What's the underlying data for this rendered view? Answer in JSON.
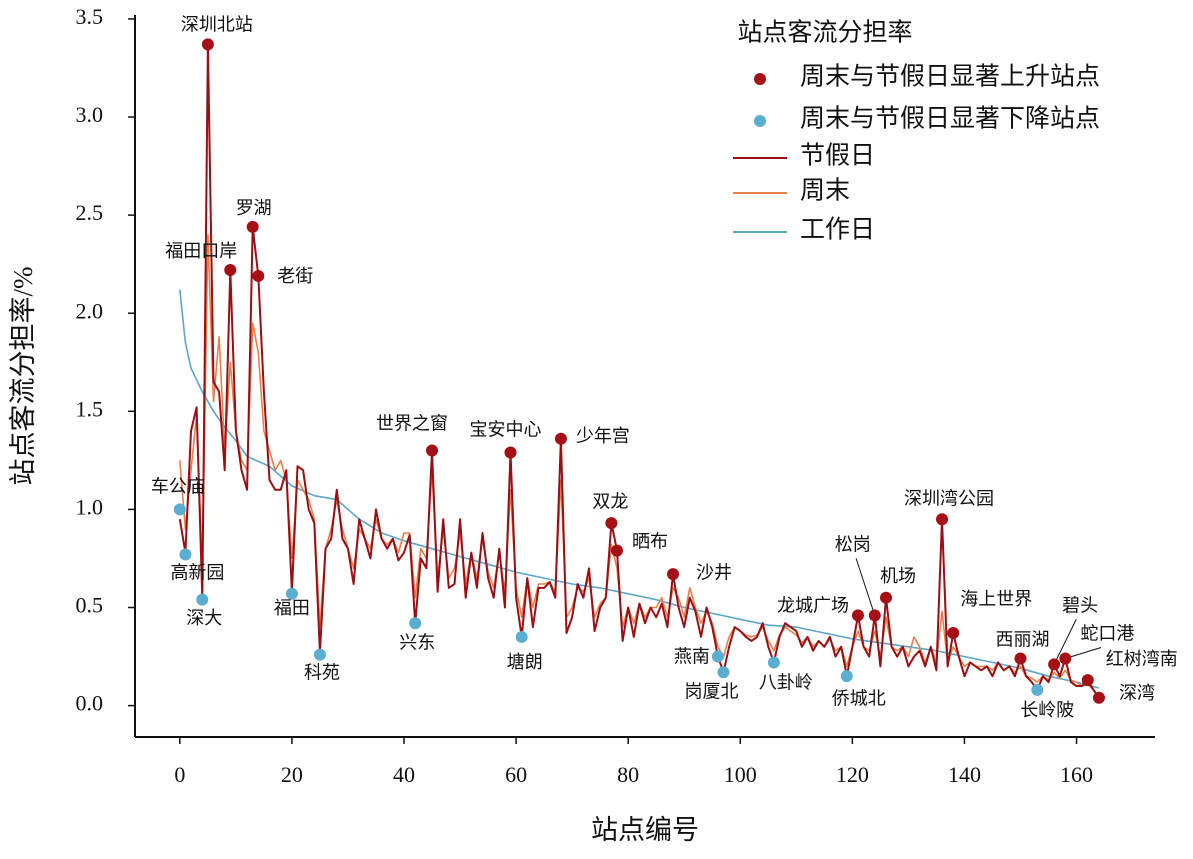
{
  "chart_data": {
    "type": "line",
    "xlabel": "站点编号",
    "ylabel": "站点客流分担率/%",
    "legend_title": "站点客流分担率",
    "legend": "upper right",
    "xlim": [
      -8,
      174
    ],
    "ylim": [
      -0.16,
      3.52
    ],
    "xticks": [
      0,
      20,
      40,
      60,
      80,
      100,
      120,
      140,
      160
    ],
    "yticks": [
      {
        "value": 0,
        "label": "0.0"
      },
      0.5,
      {
        "value": 1,
        "label": "1.0"
      },
      1.5,
      {
        "value": 2,
        "label": "2.0"
      },
      2.5,
      {
        "value": 3,
        "label": "3.0"
      },
      3.5
    ],
    "x": [
      0,
      1,
      2,
      3,
      4,
      5,
      6,
      7,
      8,
      9,
      10,
      11,
      12,
      13,
      14,
      15,
      16,
      17,
      18,
      19,
      20,
      21,
      22,
      23,
      24,
      25,
      26,
      27,
      28,
      29,
      30,
      31,
      32,
      33,
      34,
      35,
      36,
      37,
      38,
      39,
      40,
      41,
      42,
      43,
      44,
      45,
      46,
      47,
      48,
      49,
      50,
      51,
      52,
      53,
      54,
      55,
      56,
      57,
      58,
      59,
      60,
      61,
      62,
      63,
      64,
      65,
      66,
      67,
      68,
      69,
      70,
      71,
      72,
      73,
      74,
      75,
      76,
      77,
      78,
      79,
      80,
      81,
      82,
      83,
      84,
      85,
      86,
      87,
      88,
      89,
      90,
      91,
      92,
      93,
      94,
      95,
      96,
      97,
      98,
      99,
      100,
      101,
      102,
      103,
      104,
      105,
      106,
      107,
      108,
      109,
      110,
      111,
      112,
      113,
      114,
      115,
      116,
      117,
      118,
      119,
      120,
      121,
      122,
      123,
      124,
      125,
      126,
      127,
      128,
      129,
      130,
      131,
      132,
      133,
      134,
      135,
      136,
      137,
      138,
      139,
      140,
      141,
      142,
      143,
      144,
      145,
      146,
      147,
      148,
      149,
      150,
      151,
      152,
      153,
      154,
      155,
      156,
      157,
      158,
      159,
      160,
      161,
      162,
      163,
      164
    ],
    "series": [
      {
        "name": "周末与节假日显著上升站点",
        "type": "scatter",
        "color": "#a50f15",
        "labels": [
          "深圳北站",
          "福田口岸",
          "罗湖",
          "老街",
          "世界之窗",
          "宝安中心",
          "少年宫",
          "双龙",
          "晒布",
          "沙井",
          "龙城广场",
          "松岗",
          "机场",
          "深圳湾公园",
          "海上世界",
          "西丽湖",
          "碧头",
          "蛇口港",
          "红树湾南",
          "深湾"
        ],
        "x": [
          5,
          9,
          13,
          14,
          45,
          59,
          68,
          77,
          78,
          88,
          121,
          124,
          126,
          136,
          138,
          150,
          156,
          158,
          162,
          164
        ],
        "values": [
          3.37,
          2.22,
          2.44,
          2.19,
          1.3,
          1.29,
          1.36,
          0.93,
          0.79,
          0.67,
          0.46,
          0.46,
          0.55,
          0.95,
          0.37,
          0.24,
          0.21,
          0.24,
          0.13,
          0.04
        ]
      },
      {
        "name": "周末与节假日显著下降站点",
        "type": "scatter",
        "color": "#5aaed0",
        "labels": [
          "车公庙",
          "高新园",
          "深大",
          "福田",
          "科苑",
          "兴东",
          "塘朗",
          "燕南",
          "岗厦北",
          "八卦岭",
          "侨城北",
          "长岭陂"
        ],
        "x": [
          0,
          1,
          4,
          20,
          25,
          42,
          61,
          96,
          97,
          106,
          119,
          153
        ],
        "values": [
          1.0,
          0.77,
          0.54,
          0.57,
          0.26,
          0.42,
          0.35,
          0.25,
          0.17,
          0.22,
          0.15,
          0.08
        ]
      },
      {
        "name": "节假日",
        "type": "line",
        "color": "#9b0e14",
        "values": [
          0.95,
          0.78,
          1.4,
          1.52,
          0.55,
          3.37,
          1.65,
          1.6,
          1.2,
          2.22,
          1.4,
          1.2,
          1.1,
          2.44,
          2.19,
          1.6,
          1.15,
          1.1,
          1.1,
          1.2,
          0.58,
          1.22,
          1.2,
          1.0,
          0.93,
          0.27,
          0.8,
          0.85,
          1.1,
          0.85,
          0.8,
          0.62,
          0.95,
          0.85,
          0.75,
          1.0,
          0.85,
          0.8,
          0.85,
          0.74,
          0.78,
          0.87,
          0.42,
          0.75,
          0.7,
          1.3,
          0.58,
          0.95,
          0.6,
          0.62,
          0.95,
          0.55,
          0.78,
          0.6,
          0.88,
          0.65,
          0.55,
          0.8,
          0.5,
          1.29,
          0.55,
          0.35,
          0.65,
          0.4,
          0.6,
          0.6,
          0.63,
          0.55,
          1.36,
          0.37,
          0.45,
          0.62,
          0.55,
          0.7,
          0.38,
          0.5,
          0.55,
          0.93,
          0.79,
          0.33,
          0.5,
          0.35,
          0.52,
          0.42,
          0.5,
          0.45,
          0.52,
          0.4,
          0.67,
          0.5,
          0.4,
          0.55,
          0.48,
          0.35,
          0.5,
          0.4,
          0.25,
          0.17,
          0.3,
          0.4,
          0.38,
          0.35,
          0.33,
          0.35,
          0.42,
          0.3,
          0.22,
          0.35,
          0.42,
          0.4,
          0.38,
          0.3,
          0.35,
          0.28,
          0.33,
          0.3,
          0.35,
          0.25,
          0.3,
          0.15,
          0.3,
          0.46,
          0.3,
          0.25,
          0.46,
          0.2,
          0.55,
          0.3,
          0.25,
          0.3,
          0.2,
          0.25,
          0.28,
          0.2,
          0.3,
          0.18,
          0.95,
          0.2,
          0.37,
          0.25,
          0.15,
          0.22,
          0.2,
          0.18,
          0.2,
          0.15,
          0.22,
          0.18,
          0.2,
          0.15,
          0.24,
          0.15,
          0.12,
          0.08,
          0.15,
          0.12,
          0.21,
          0.15,
          0.24,
          0.12,
          0.1,
          0.1,
          0.13,
          0.08,
          0.04
        ]
      },
      {
        "name": "周末",
        "type": "line",
        "color": "#e8804a",
        "values": [
          1.25,
          0.9,
          1.2,
          1.48,
          0.7,
          2.4,
          1.55,
          1.88,
          1.3,
          1.75,
          1.4,
          1.25,
          1.2,
          1.95,
          1.8,
          1.4,
          1.3,
          1.2,
          1.25,
          1.15,
          0.75,
          1.15,
          1.1,
          1.05,
          0.95,
          0.4,
          0.8,
          0.9,
          1.05,
          0.9,
          0.8,
          0.7,
          0.9,
          0.85,
          0.8,
          0.95,
          0.85,
          0.82,
          0.85,
          0.78,
          0.88,
          0.88,
          0.55,
          0.8,
          0.75,
          1.2,
          0.65,
          0.9,
          0.65,
          0.7,
          0.88,
          0.62,
          0.78,
          0.65,
          0.85,
          0.68,
          0.6,
          0.78,
          0.58,
          1.1,
          0.6,
          0.45,
          0.65,
          0.5,
          0.62,
          0.62,
          0.63,
          0.58,
          1.15,
          0.45,
          0.5,
          0.6,
          0.58,
          0.65,
          0.45,
          0.52,
          0.55,
          0.82,
          0.7,
          0.4,
          0.5,
          0.42,
          0.52,
          0.45,
          0.5,
          0.5,
          0.55,
          0.45,
          0.6,
          0.55,
          0.45,
          0.6,
          0.5,
          0.42,
          0.48,
          0.42,
          0.3,
          0.25,
          0.35,
          0.4,
          0.38,
          0.36,
          0.35,
          0.36,
          0.4,
          0.33,
          0.28,
          0.36,
          0.4,
          0.38,
          0.36,
          0.32,
          0.35,
          0.3,
          0.33,
          0.3,
          0.34,
          0.28,
          0.3,
          0.2,
          0.3,
          0.38,
          0.3,
          0.28,
          0.38,
          0.25,
          0.45,
          0.3,
          0.28,
          0.3,
          0.25,
          0.35,
          0.3,
          0.22,
          0.3,
          0.22,
          0.48,
          0.22,
          0.3,
          0.25,
          0.2,
          0.22,
          0.2,
          0.2,
          0.2,
          0.18,
          0.22,
          0.18,
          0.2,
          0.17,
          0.2,
          0.15,
          0.14,
          0.12,
          0.15,
          0.13,
          0.17,
          0.14,
          0.18,
          0.13,
          0.12,
          0.1,
          0.11,
          0.08,
          0.05
        ]
      },
      {
        "name": "工作日",
        "type": "line",
        "color": "#5aa7c9",
        "x": [
          0,
          1,
          2,
          3,
          4,
          6,
          8,
          10,
          12,
          16,
          20,
          24,
          28,
          32,
          36,
          40,
          45,
          50,
          55,
          60,
          65,
          70,
          75,
          80,
          85,
          90,
          95,
          100,
          105,
          110,
          115,
          120,
          125,
          130,
          135,
          140,
          145,
          150,
          155,
          160,
          164
        ],
        "values": [
          2.12,
          1.85,
          1.72,
          1.66,
          1.6,
          1.5,
          1.42,
          1.35,
          1.27,
          1.22,
          1.12,
          1.07,
          1.05,
          0.95,
          0.88,
          0.84,
          0.8,
          0.76,
          0.72,
          0.68,
          0.65,
          0.62,
          0.6,
          0.57,
          0.54,
          0.5,
          0.47,
          0.44,
          0.41,
          0.4,
          0.37,
          0.34,
          0.32,
          0.3,
          0.28,
          0.25,
          0.22,
          0.19,
          0.15,
          0.12,
          0.09
        ]
      }
    ]
  }
}
